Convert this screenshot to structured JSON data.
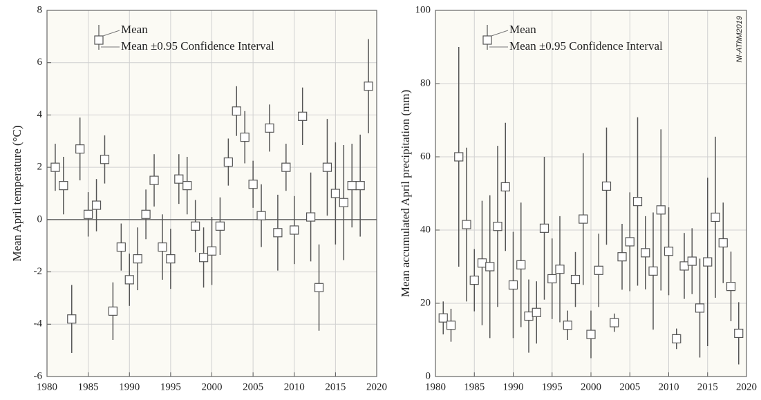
{
  "chart_data": [
    {
      "type": "errorbar",
      "ylabel": "Mean April temperature (°C)",
      "x": [
        1981,
        1982,
        1983,
        1984,
        1985,
        1986,
        1987,
        1988,
        1989,
        1990,
        1991,
        1992,
        1993,
        1994,
        1995,
        1996,
        1997,
        1998,
        1999,
        2000,
        2001,
        2002,
        2003,
        2004,
        2005,
        2006,
        2007,
        2008,
        2009,
        2010,
        2011,
        2012,
        2013,
        2014,
        2015,
        2016,
        2017,
        2018,
        2019
      ],
      "series": [
        {
          "name": "Mean",
          "error_name": "Mean ±0.95 Confidence Interval",
          "color": "#555555",
          "values": [
            2.0,
            1.3,
            -3.8,
            2.7,
            0.2,
            0.55,
            2.3,
            -3.5,
            -1.05,
            -2.3,
            -1.5,
            0.2,
            1.5,
            -1.05,
            -1.5,
            1.55,
            1.3,
            -0.25,
            -1.45,
            -1.2,
            -0.25,
            2.2,
            4.15,
            3.15,
            1.35,
            0.15,
            3.5,
            -0.5,
            2.0,
            -0.4,
            3.95,
            0.1,
            -2.6,
            2.0,
            1.0,
            0.65,
            1.3,
            1.3,
            5.1
          ],
          "errors": [
            0.9,
            1.1,
            1.3,
            1.2,
            0.85,
            1.0,
            0.92,
            1.1,
            0.9,
            1.0,
            1.2,
            0.95,
            1.0,
            1.25,
            1.15,
            0.95,
            1.1,
            1.0,
            1.15,
            1.3,
            1.1,
            0.9,
            0.95,
            1.0,
            0.9,
            1.2,
            0.9,
            1.45,
            0.9,
            1.3,
            1.1,
            1.7,
            1.65,
            1.85,
            1.95,
            2.2,
            1.6,
            1.95,
            1.8
          ]
        }
      ],
      "xlim": [
        1980,
        2020
      ],
      "xticks": [
        1980,
        1985,
        1990,
        1995,
        2000,
        2005,
        2010,
        2015,
        2020
      ],
      "ylim": [
        -6,
        8
      ],
      "yticks": [
        -6,
        -4,
        -2,
        0,
        2,
        4,
        6,
        8
      ],
      "grid": true,
      "zero_line": true
    },
    {
      "type": "errorbar",
      "ylabel": "Mean accumulated April precipitation (mm)",
      "annotation": "NI-AThM2019",
      "x": [
        1981,
        1982,
        1983,
        1984,
        1985,
        1986,
        1987,
        1988,
        1989,
        1990,
        1991,
        1992,
        1993,
        1994,
        1995,
        1996,
        1997,
        1998,
        1999,
        2000,
        2001,
        2002,
        2003,
        2004,
        2005,
        2006,
        2007,
        2008,
        2009,
        2010,
        2011,
        2012,
        2013,
        2014,
        2015,
        2016,
        2017,
        2018,
        2019
      ],
      "series": [
        {
          "name": "Mean",
          "error_name": "Mean ±0.95 Confidence Interval",
          "color": "#555555",
          "values": [
            16,
            14,
            60,
            41.5,
            26.3,
            31,
            30,
            41,
            51.8,
            25,
            30.5,
            16.5,
            17.5,
            40.5,
            26.7,
            29.3,
            14,
            26.5,
            43,
            11.5,
            29,
            52,
            14.7,
            32.7,
            36.8,
            47.8,
            33.8,
            28.8,
            45.5,
            34.2,
            10.3,
            30.2,
            31.5,
            18.7,
            31.3,
            43.5,
            36.5,
            24.6,
            11.8
          ],
          "errors": [
            4.5,
            4.5,
            30,
            21,
            8.5,
            17,
            19.5,
            22,
            17.5,
            14.5,
            17,
            10,
            8.5,
            19.5,
            11,
            14.5,
            4,
            7.5,
            18,
            6.5,
            10,
            16,
            2.5,
            9,
            13.5,
            23,
            10,
            16,
            22,
            12,
            2.8,
            9,
            9,
            13.5,
            23,
            22,
            11,
            9.5,
            8.5
          ]
        }
      ],
      "xlim": [
        1980,
        2020
      ],
      "xticks": [
        1980,
        1985,
        1990,
        1995,
        2000,
        2005,
        2010,
        2015,
        2020
      ],
      "ylim": [
        0,
        100
      ],
      "yticks": [
        0,
        20,
        40,
        60,
        80,
        100
      ],
      "grid": true,
      "zero_line": false
    }
  ]
}
